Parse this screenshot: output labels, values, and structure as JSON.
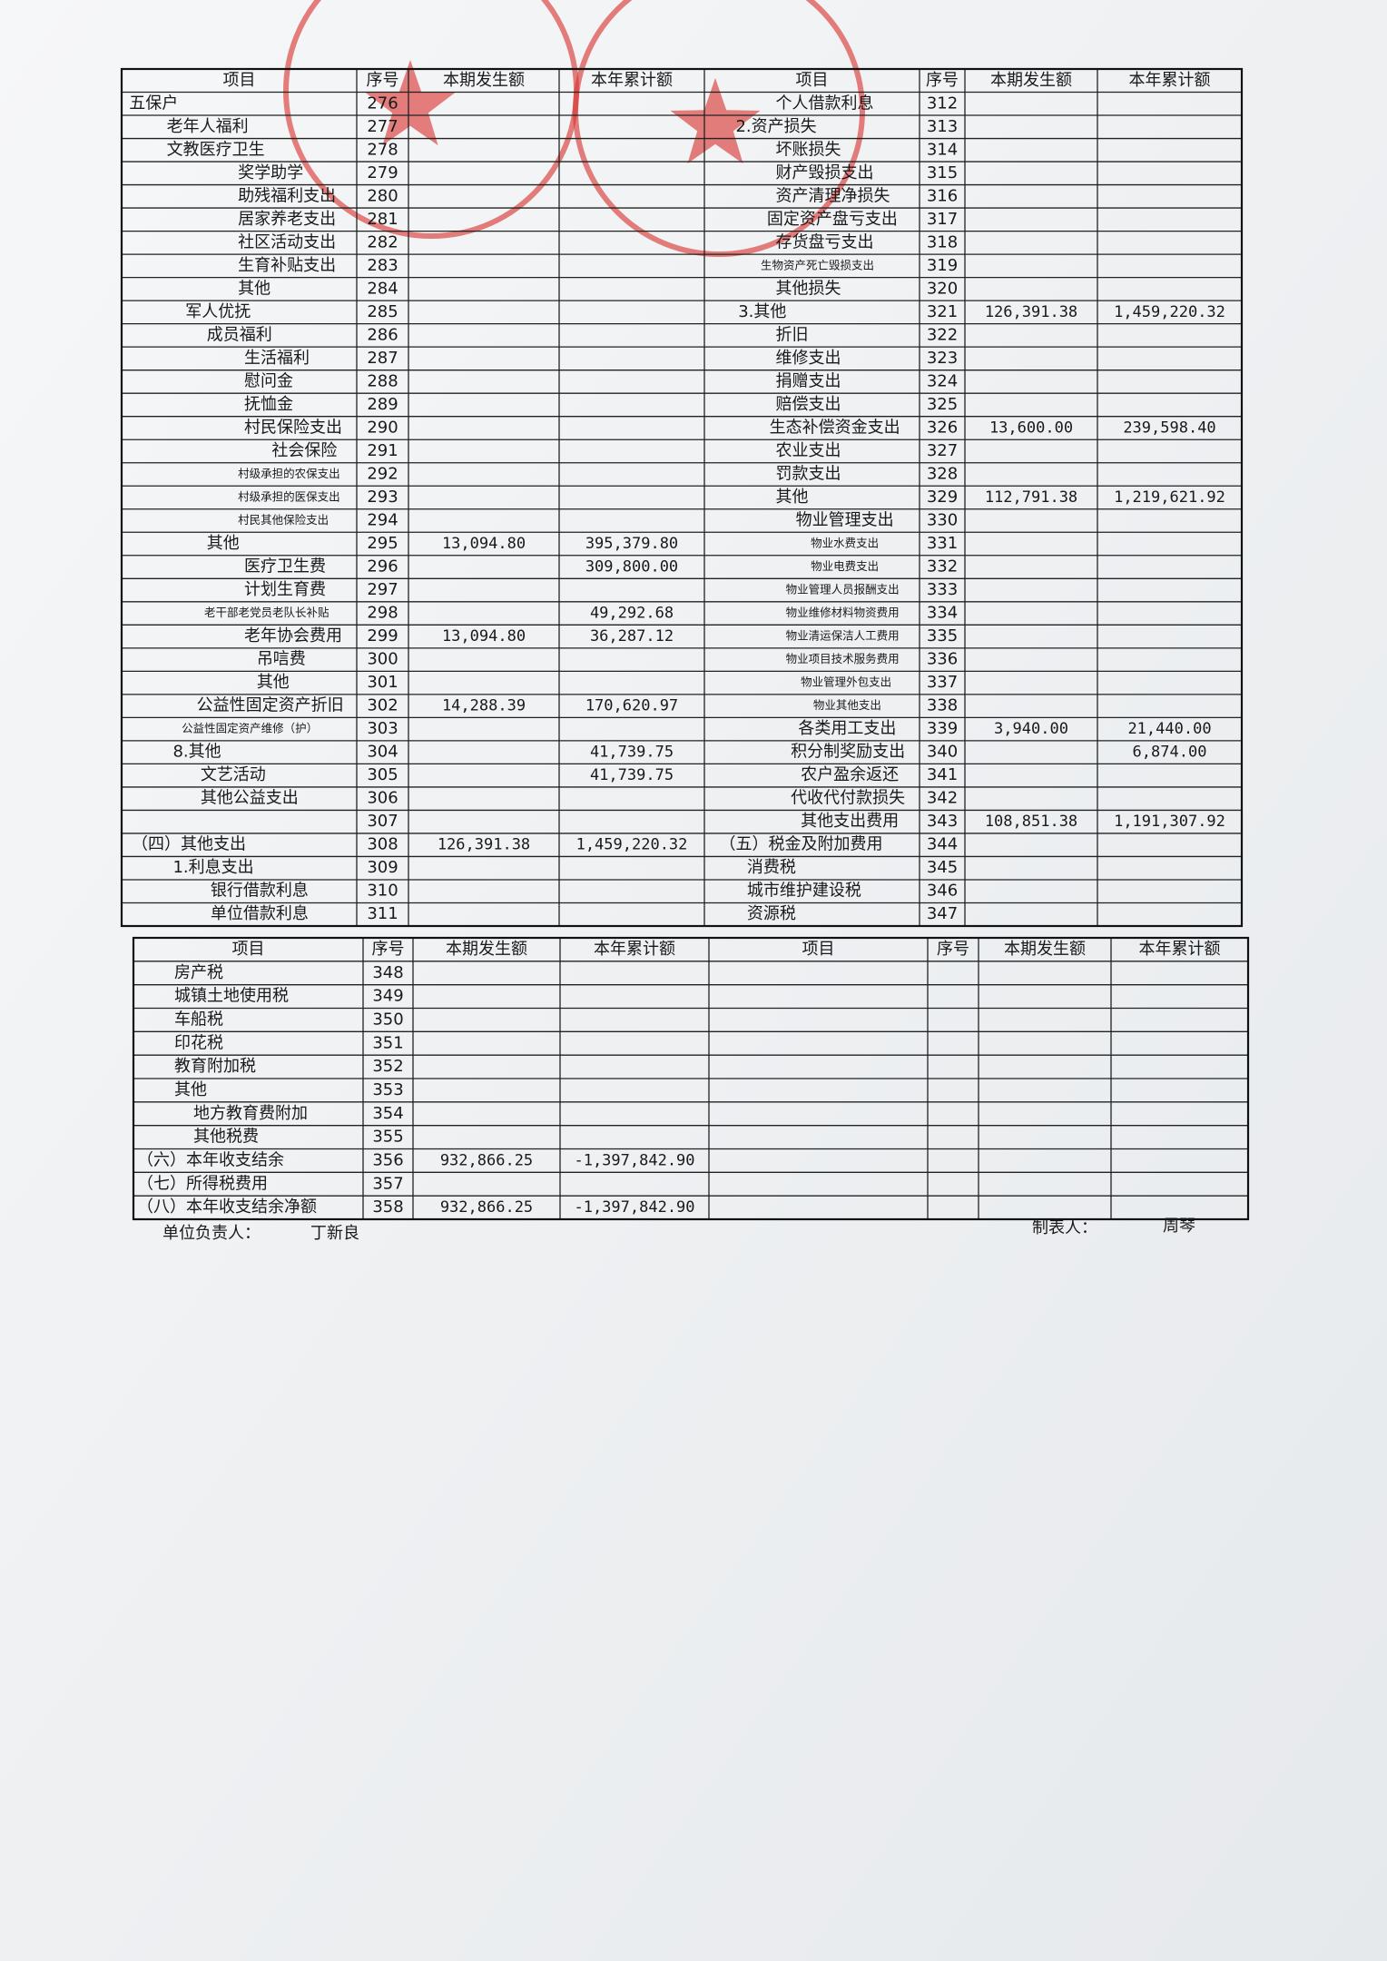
{
  "top_table": {
    "columns": [
      "项目",
      "序号",
      "本期发生额",
      "本年累计额"
    ],
    "rows": [
      {
        "left": {
          "item": "五保户",
          "no": 276
        },
        "right": {
          "item": "个人借款利息",
          "no": 312
        }
      },
      {
        "left": {
          "item": "老年人福利",
          "no": 277
        },
        "right": {
          "item": "2.资产损失",
          "no": 313
        }
      },
      {
        "left": {
          "item": "文教医疗卫生",
          "no": 278
        },
        "right": {
          "item": "坏账损失",
          "no": 314
        }
      },
      {
        "left": {
          "item": "奖学助学",
          "no": 279
        },
        "right": {
          "item": "财产毁损支出",
          "no": 315
        }
      },
      {
        "left": {
          "item": "助残福利支出",
          "no": 280
        },
        "right": {
          "item": "资产清理净损失",
          "no": 316
        }
      },
      {
        "left": {
          "item": "居家养老支出",
          "no": 281
        },
        "right": {
          "item": "固定资产盘亏支出",
          "no": 317
        }
      },
      {
        "left": {
          "item": "社区活动支出",
          "no": 282
        },
        "right": {
          "item": "存货盘亏支出",
          "no": 318
        }
      },
      {
        "left": {
          "item": "生育补贴支出",
          "no": 283
        },
        "right": {
          "item": "生物资产死亡毁损支出",
          "no": 319
        }
      },
      {
        "left": {
          "item": "其他",
          "no": 284
        },
        "right": {
          "item": "其他损失",
          "no": 320
        }
      },
      {
        "left": {
          "item": "军人优抚",
          "no": 285
        },
        "right": {
          "item": "3.其他",
          "no": 321,
          "current": "126,391.38",
          "ytd": "1,459,220.32"
        }
      },
      {
        "left": {
          "item": "成员福利",
          "no": 286
        },
        "right": {
          "item": "折旧",
          "no": 322
        }
      },
      {
        "left": {
          "item": "生活福利",
          "no": 287
        },
        "right": {
          "item": "维修支出",
          "no": 323
        }
      },
      {
        "left": {
          "item": "慰问金",
          "no": 288
        },
        "right": {
          "item": "捐赠支出",
          "no": 324
        }
      },
      {
        "left": {
          "item": "抚恤金",
          "no": 289
        },
        "right": {
          "item": "赔偿支出",
          "no": 325
        }
      },
      {
        "left": {
          "item": "村民保险支出",
          "no": 290
        },
        "right": {
          "item": "生态补偿资金支出",
          "no": 326,
          "current": "13,600.00",
          "ytd": "239,598.40"
        }
      },
      {
        "left": {
          "item": "社会保险",
          "no": 291
        },
        "right": {
          "item": "农业支出",
          "no": 327
        }
      },
      {
        "left": {
          "item": "村级承担的农保支出",
          "no": 292
        },
        "right": {
          "item": "罚款支出",
          "no": 328
        }
      },
      {
        "left": {
          "item": "村级承担的医保支出",
          "no": 293
        },
        "right": {
          "item": "其他",
          "no": 329,
          "current": "112,791.38",
          "ytd": "1,219,621.92"
        }
      },
      {
        "left": {
          "item": "村民其他保险支出",
          "no": 294
        },
        "right": {
          "item": "物业管理支出",
          "no": 330
        }
      },
      {
        "left": {
          "item": "其他",
          "no": 295,
          "current": "13,094.80",
          "ytd": "395,379.80"
        },
        "right": {
          "item": "物业水费支出",
          "no": 331
        }
      },
      {
        "left": {
          "item": "医疗卫生费",
          "no": 296,
          "ytd": "309,800.00"
        },
        "right": {
          "item": "物业电费支出",
          "no": 332
        }
      },
      {
        "left": {
          "item": "计划生育费",
          "no": 297
        },
        "right": {
          "item": "物业管理人员报酬支出",
          "no": 333
        }
      },
      {
        "left": {
          "item": "老干部老党员老队长补贴",
          "no": 298,
          "ytd": "49,292.68"
        },
        "right": {
          "item": "物业维修材料物资费用",
          "no": 334
        }
      },
      {
        "left": {
          "item": "老年协会费用",
          "no": 299,
          "current": "13,094.80",
          "ytd": "36,287.12"
        },
        "right": {
          "item": "物业清运保洁人工费用",
          "no": 335
        }
      },
      {
        "left": {
          "item": "吊唁费",
          "no": 300
        },
        "right": {
          "item": "物业项目技术服务费用",
          "no": 336
        }
      },
      {
        "left": {
          "item": "其他",
          "no": 301
        },
        "right": {
          "item": "物业管理外包支出",
          "no": 337
        }
      },
      {
        "left": {
          "item": "公益性固定资产折旧",
          "no": 302,
          "current": "14,288.39",
          "ytd": "170,620.97"
        },
        "right": {
          "item": "物业其他支出",
          "no": 338
        }
      },
      {
        "left": {
          "item": "公益性固定资产维修（护）",
          "no": 303
        },
        "right": {
          "item": "各类用工支出",
          "no": 339,
          "current": "3,940.00",
          "ytd": "21,440.00"
        }
      },
      {
        "left": {
          "item": "8.其他",
          "no": 304,
          "ytd": "41,739.75"
        },
        "right": {
          "item": "积分制奖励支出",
          "no": 340,
          "ytd": "6,874.00"
        }
      },
      {
        "left": {
          "item": "文艺活动",
          "no": 305,
          "ytd": "41,739.75"
        },
        "right": {
          "item": "农户盈余返还",
          "no": 341
        }
      },
      {
        "left": {
          "item": "其他公益支出",
          "no": 306
        },
        "right": {
          "item": "代收代付款损失",
          "no": 342
        }
      },
      {
        "left": {
          "no": 307
        },
        "right": {
          "item": "其他支出费用",
          "no": 343,
          "current": "108,851.38",
          "ytd": "1,191,307.92"
        }
      },
      {
        "left": {
          "item": "（四）其他支出",
          "no": 308,
          "current": "126,391.38",
          "ytd": "1,459,220.32"
        },
        "right": {
          "item": "（五）税金及附加费用",
          "no": 344
        }
      },
      {
        "left": {
          "item": "1.利息支出",
          "no": 309
        },
        "right": {
          "item": "消费税",
          "no": 345
        }
      },
      {
        "left": {
          "item": "银行借款利息",
          "no": 310
        },
        "right": {
          "item": "城市维护建设税",
          "no": 346
        }
      },
      {
        "left": {
          "item": "单位借款利息",
          "no": 311
        },
        "right": {
          "item": "资源税",
          "no": 347
        }
      }
    ]
  },
  "bottom_table": {
    "columns": [
      "项目",
      "序号",
      "本期发生额",
      "本年累计额"
    ],
    "rows": [
      {
        "item": "房产税",
        "no": 348
      },
      {
        "item": "城镇土地使用税",
        "no": 349
      },
      {
        "item": "车船税",
        "no": 350
      },
      {
        "item": "印花税",
        "no": 351
      },
      {
        "item": "教育附加税",
        "no": 352
      },
      {
        "item": "其他",
        "no": 353
      },
      {
        "item": "地方教育费附加",
        "no": 354
      },
      {
        "item": "其他税费",
        "no": 355
      },
      {
        "item": "（六）本年收支结余",
        "no": 356,
        "current": "932,866.25",
        "ytd": "-1,397,842.90"
      },
      {
        "item": "（七）所得税费用",
        "no": 357
      },
      {
        "item": "（八）本年收支结余净额",
        "no": 358,
        "current": "932,866.25",
        "ytd": "-1,397,842.90"
      }
    ]
  },
  "footer": {
    "principal_label": "单位负责人：",
    "principal": "丁新良",
    "preparer_label": "制表人：",
    "preparer": "周琴"
  }
}
